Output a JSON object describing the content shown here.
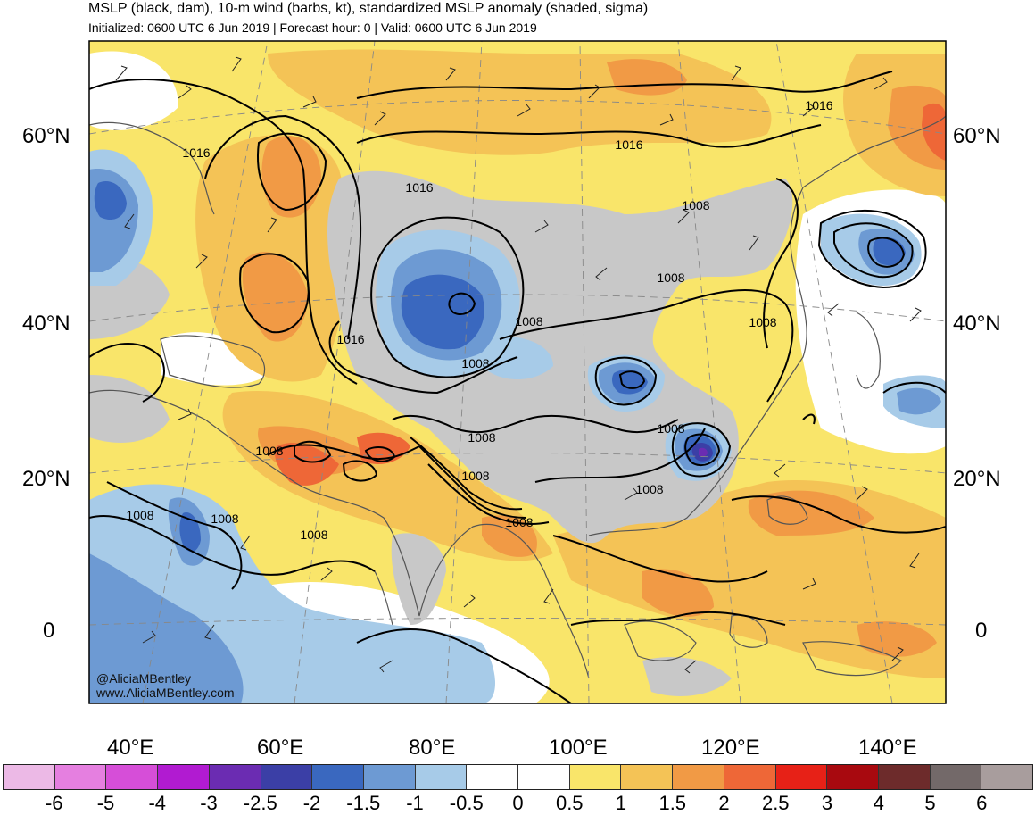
{
  "title": "MSLP (black, dam), 10-m wind (barbs, kt), standardized MSLP anomaly (shaded, sigma)",
  "subtitle": "Initialized: 0600 UTC 6 Jun 2019 | Forecast hour: 0 | Valid: 0600 UTC 6 Jun 2019",
  "credits": [
    "@AliciaMBentley",
    "www.AliciaMBentley.com"
  ],
  "lat_labels": [
    "60°N",
    "40°N",
    "20°N",
    "0"
  ],
  "lon_labels": [
    "40°E",
    "60°E",
    "80°E",
    "100°E",
    "120°E",
    "140°E"
  ],
  "contour_labels": [
    "1016",
    "1016",
    "1016",
    "1016",
    "1016",
    "1008",
    "1008",
    "1008",
    "1008",
    "1008",
    "1008",
    "1008",
    "1008",
    "1008",
    "1008",
    "1008",
    "1008",
    "1008",
    "1008"
  ],
  "colorbar": {
    "ticks": [
      "-6",
      "-5",
      "-4",
      "-3",
      "-2.5",
      "-2",
      "-1.5",
      "-1",
      "-0.5",
      "0",
      "0.5",
      "1",
      "1.5",
      "2",
      "2.5",
      "3",
      "4",
      "5",
      "6"
    ],
    "colors": [
      "#ecb9e6",
      "#e57fe0",
      "#d64ed8",
      "#b11bd1",
      "#6b2cb2",
      "#3b3fa6",
      "#3a68bf",
      "#6d9ad3",
      "#a7cbe8",
      "#ffffff",
      "#ffffff",
      "#f9e56a",
      "#f4c356",
      "#f19a45",
      "#ee6737",
      "#e72117",
      "#a8090f",
      "#6d2b2b",
      "#736969",
      "#a89d9d"
    ]
  },
  "palette": {
    "warm1": "#f9e56a",
    "warm2": "#f4c356",
    "warm3": "#f19a45",
    "warm4": "#ee6737",
    "warm5": "#e72117",
    "cool1": "#a7cbe8",
    "cool2": "#6d9ad3",
    "cool3": "#3a68bf",
    "cool4": "#3b3fa6",
    "cool5": "#6b2cb2",
    "gray": "#c8c8c8",
    "coast": "#555555",
    "contour": "#000000"
  }
}
